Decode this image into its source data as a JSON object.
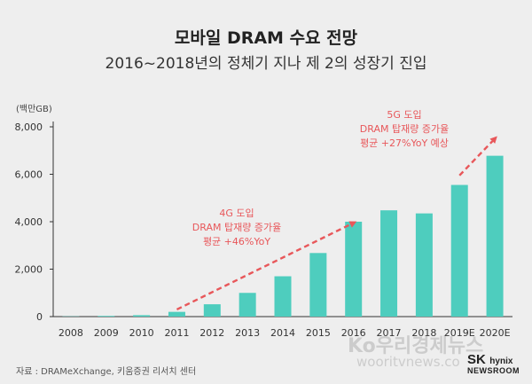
{
  "header": {
    "title": "모바일 DRAM 수요 전망",
    "subtitle": "2016~2018년의 정체기 지나 제 2의 성장기 진입"
  },
  "footer": {
    "source": "자료 : DRAMeXchange, 키움증권 리서치 센터",
    "watermark_line1": "Ko우리경제뉴스",
    "watermark_line2": "wooritvnews.co",
    "logo_sk": "SK",
    "logo_hynix": "hynix",
    "logo_newsroom": "NEWSROOM"
  },
  "colors": {
    "bar": "#4ecdbe",
    "arrow": "#e8575a",
    "axis": "#333333"
  },
  "chart_data": {
    "type": "bar",
    "ylabel": "(백만GB)",
    "ylim": [
      0,
      8000
    ],
    "yticks": [
      0,
      2000,
      4000,
      6000,
      8000
    ],
    "ytick_labels": [
      "0",
      "2,000",
      "4,000",
      "6,000",
      "8,000"
    ],
    "categories": [
      "2008",
      "2009",
      "2010",
      "2011",
      "2012",
      "2013",
      "2014",
      "2015",
      "2016",
      "2017",
      "2018",
      "2019E",
      "2020E"
    ],
    "values": [
      10,
      30,
      60,
      200,
      520,
      1000,
      1700,
      2680,
      4000,
      4480,
      4350,
      5550,
      6780
    ],
    "annotations": [
      {
        "lines": [
          "4G 도입",
          "DRAM 탑재량 증가율",
          "평균 +46%YoY"
        ],
        "from_category": "2011",
        "to_category": "2016",
        "from_value": 300,
        "to_value": 3950
      },
      {
        "lines": [
          "5G 도입",
          "DRAM 탑재량 증가율",
          "평균 +27%YoY 예상"
        ],
        "from_category": "2019E",
        "to_category": "2020E",
        "from_value": 5950,
        "to_value": 7500
      }
    ]
  }
}
